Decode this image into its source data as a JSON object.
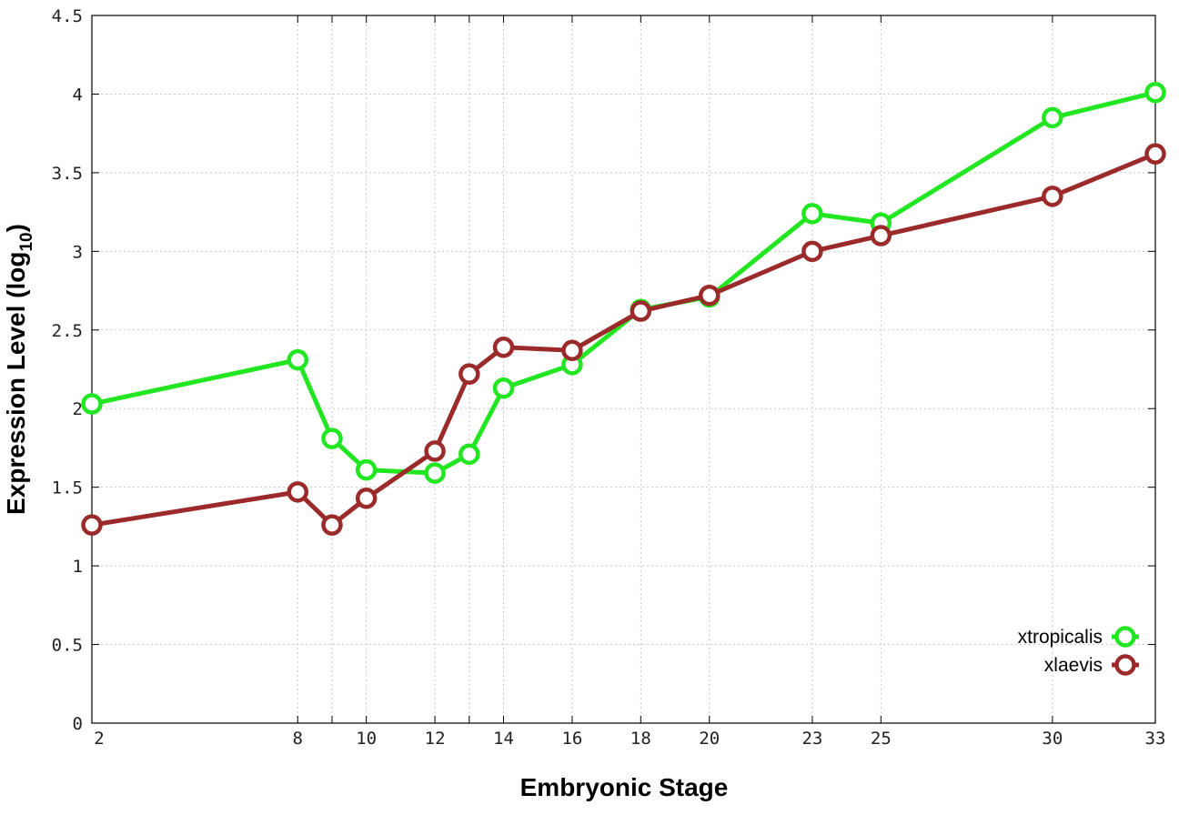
{
  "chart_data": {
    "type": "line",
    "xlabel": "Embryonic Stage",
    "ylabel_main": "Expression Level (log",
    "ylabel_sub": "10",
    "ylabel_close": ")",
    "x_categories": [
      "2",
      "8",
      "9",
      "10",
      "12",
      "13",
      "14",
      "16",
      "18",
      "20",
      "23",
      "25",
      "30",
      "33"
    ],
    "x_tick_labels": [
      "2",
      "8",
      "",
      "10",
      "12",
      "",
      "14",
      "16",
      "18",
      "20",
      "23",
      "25",
      "30",
      "33"
    ],
    "y_ticks": [
      "0",
      "0.5",
      "1",
      "1.5",
      "2",
      "2.5",
      "3",
      "3.5",
      "4",
      "4.5"
    ],
    "ylim": [
      0,
      4.5
    ],
    "grid": true,
    "legend_position": "bottom-right",
    "series": [
      {
        "name": "xtropicalis",
        "color": "#22e622",
        "values": [
          2.03,
          2.31,
          1.81,
          1.61,
          1.59,
          1.71,
          2.13,
          2.28,
          2.63,
          2.71,
          3.24,
          3.18,
          3.85,
          4.01
        ]
      },
      {
        "name": "xlaevis",
        "color": "#9b2b2b",
        "values": [
          1.26,
          1.47,
          1.26,
          1.43,
          1.73,
          2.22,
          2.39,
          2.37,
          2.62,
          2.72,
          3.0,
          3.1,
          3.35,
          3.62
        ]
      }
    ]
  }
}
